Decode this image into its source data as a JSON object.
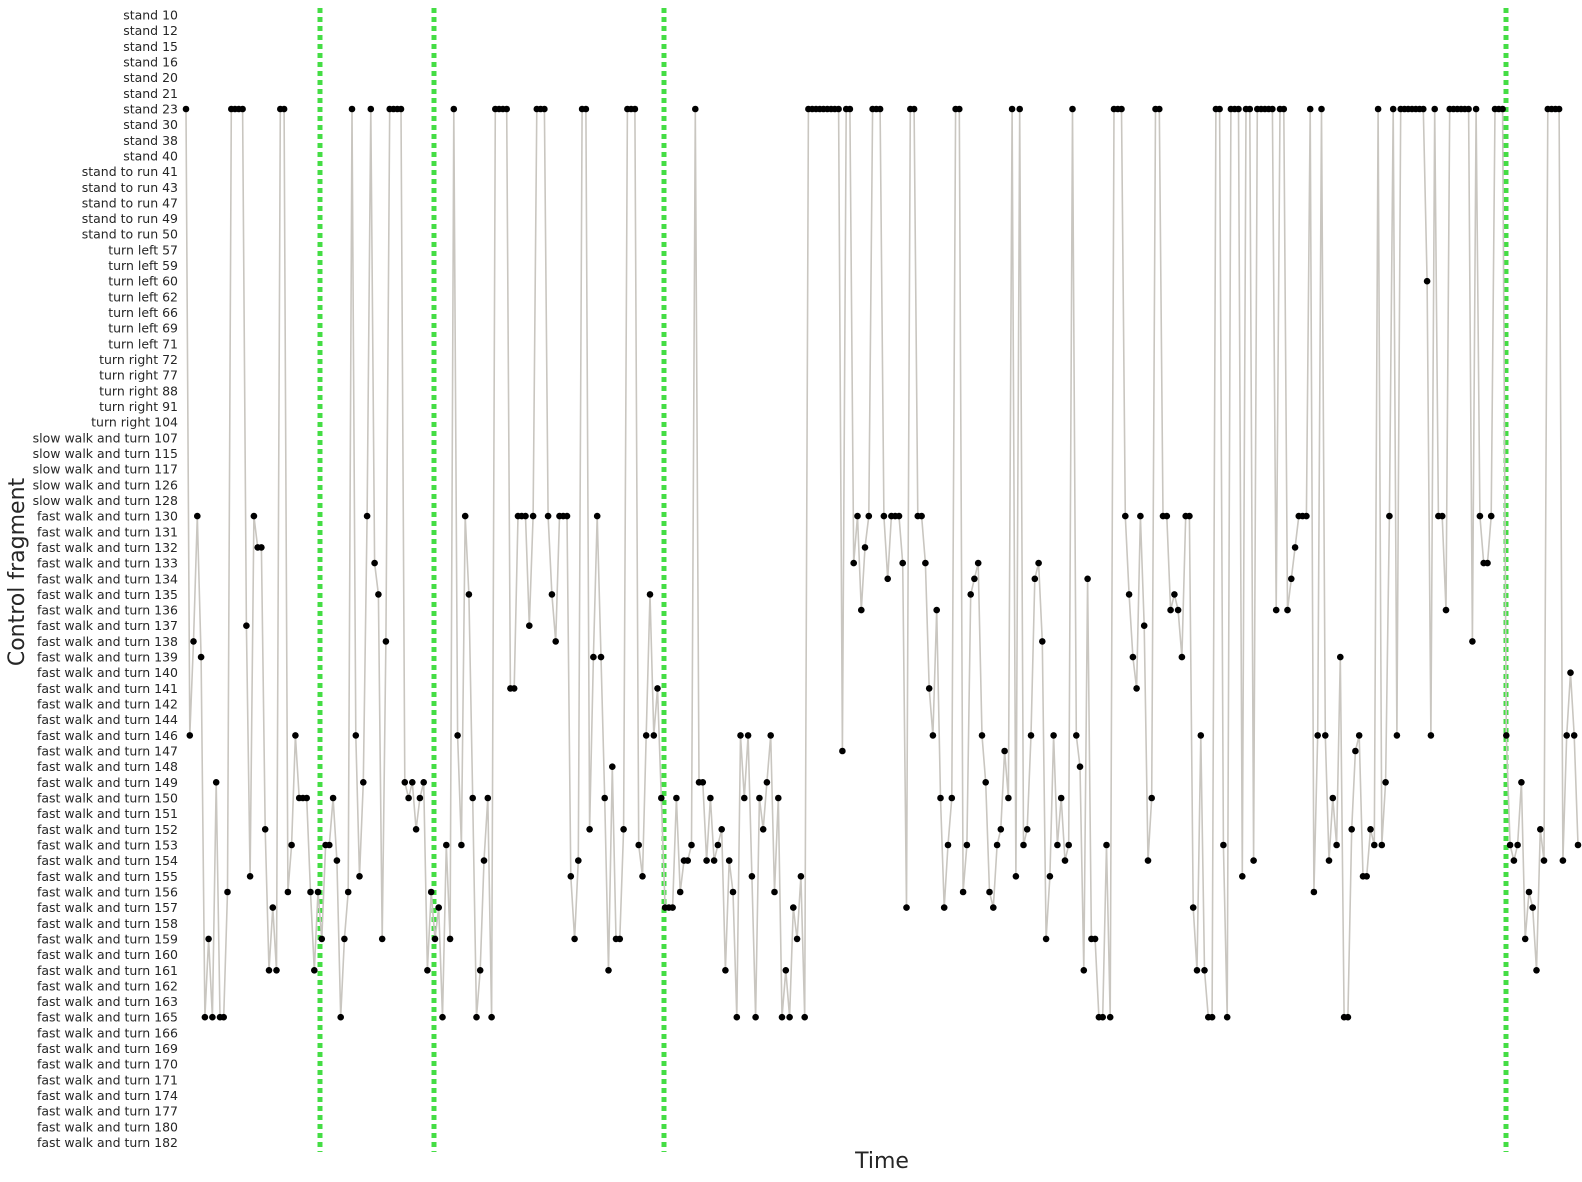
{
  "chart_data": {
    "type": "scatter",
    "xlabel": "Time",
    "ylabel": "Control fragment",
    "categories": [
      "stand 10",
      "stand 12",
      "stand 15",
      "stand 16",
      "stand 20",
      "stand 21",
      "stand 23",
      "stand 30",
      "stand 38",
      "stand 40",
      "stand to run 41",
      "stand to run 43",
      "stand to run 47",
      "stand to run 49",
      "stand to run 50",
      "turn left 57",
      "turn left 59",
      "turn left 60",
      "turn left 62",
      "turn left 66",
      "turn left 69",
      "turn left 71",
      "turn right 72",
      "turn right 77",
      "turn right 88",
      "turn right 91",
      "turn right 104",
      "slow walk and turn 107",
      "slow walk and turn 115",
      "slow walk and turn 117",
      "slow walk and turn 126",
      "slow walk and turn 128",
      "fast walk and turn 130",
      "fast walk and turn 131",
      "fast walk and turn 132",
      "fast walk and turn 133",
      "fast walk and turn 134",
      "fast walk and turn 135",
      "fast walk and turn 136",
      "fast walk and turn 137",
      "fast walk and turn 138",
      "fast walk and turn 139",
      "fast walk and turn 140",
      "fast walk and turn 141",
      "fast walk and turn 142",
      "fast walk and turn 144",
      "fast walk and turn 146",
      "fast walk and turn 147",
      "fast walk and turn 148",
      "fast walk and turn 149",
      "fast walk and turn 150",
      "fast walk and turn 151",
      "fast walk and turn 152",
      "fast walk and turn 153",
      "fast walk and turn 154",
      "fast walk and turn 155",
      "fast walk and turn 156",
      "fast walk and turn 157",
      "fast walk and turn 158",
      "fast walk and turn 159",
      "fast walk and turn 160",
      "fast walk and turn 161",
      "fast walk and turn 162",
      "fast walk and turn 163",
      "fast walk and turn 165",
      "fast walk and turn 166",
      "fast walk and turn 169",
      "fast walk and turn 170",
      "fast walk and turn 171",
      "fast walk and turn 174",
      "fast walk and turn 177",
      "fast walk and turn 180",
      "fast walk and turn 182"
    ],
    "series": [
      {
        "values": [
          "stand 23",
          "fast walk and turn 146",
          "fast walk and turn 138",
          "fast walk and turn 130",
          "fast walk and turn 139",
          "fast walk and turn 165",
          "fast walk and turn 159",
          "fast walk and turn 165",
          "fast walk and turn 149",
          "fast walk and turn 165",
          "fast walk and turn 165",
          "fast walk and turn 156",
          "stand 23",
          "stand 23",
          "stand 23",
          "stand 23",
          "fast walk and turn 137",
          "fast walk and turn 155",
          "fast walk and turn 130",
          "fast walk and turn 132",
          "fast walk and turn 132",
          "fast walk and turn 152",
          "fast walk and turn 161",
          "fast walk and turn 157",
          "fast walk and turn 161",
          "stand 23",
          "stand 23",
          "fast walk and turn 156",
          "fast walk and turn 153",
          "fast walk and turn 146",
          "fast walk and turn 150",
          "fast walk and turn 150",
          "fast walk and turn 150",
          "fast walk and turn 156",
          "fast walk and turn 161",
          "fast walk and turn 156",
          "fast walk and turn 159",
          "fast walk and turn 153",
          "fast walk and turn 153",
          "fast walk and turn 150",
          "fast walk and turn 154",
          "fast walk and turn 165",
          "fast walk and turn 159",
          "fast walk and turn 156",
          "stand 23",
          "fast walk and turn 146",
          "fast walk and turn 155",
          "fast walk and turn 149",
          "fast walk and turn 130",
          "stand 23",
          "fast walk and turn 133",
          "fast walk and turn 135",
          "fast walk and turn 159",
          "fast walk and turn 138",
          "stand 23",
          "stand 23",
          "stand 23",
          "stand 23",
          "fast walk and turn 149",
          "fast walk and turn 150",
          "fast walk and turn 149",
          "fast walk and turn 152",
          "fast walk and turn 150",
          "fast walk and turn 149",
          "fast walk and turn 161",
          "fast walk and turn 156",
          "fast walk and turn 159",
          "fast walk and turn 157",
          "fast walk and turn 165",
          "fast walk and turn 153",
          "fast walk and turn 159",
          "stand 23",
          "fast walk and turn 146",
          "fast walk and turn 153",
          "fast walk and turn 130",
          "fast walk and turn 135",
          "fast walk and turn 150",
          "fast walk and turn 165",
          "fast walk and turn 161",
          "fast walk and turn 154",
          "fast walk and turn 150",
          "fast walk and turn 165",
          "stand 23",
          "stand 23",
          "stand 23",
          "stand 23",
          "fast walk and turn 141",
          "fast walk and turn 141",
          "fast walk and turn 130",
          "fast walk and turn 130",
          "fast walk and turn 130",
          "fast walk and turn 137",
          "fast walk and turn 130",
          "stand 23",
          "stand 23",
          "stand 23",
          "fast walk and turn 130",
          "fast walk and turn 135",
          "fast walk and turn 138",
          "fast walk and turn 130",
          "fast walk and turn 130",
          "fast walk and turn 130",
          "fast walk and turn 155",
          "fast walk and turn 159",
          "fast walk and turn 154",
          "stand 23",
          "stand 23",
          "fast walk and turn 152",
          "fast walk and turn 139",
          "fast walk and turn 130",
          "fast walk and turn 139",
          "fast walk and turn 150",
          "fast walk and turn 161",
          "fast walk and turn 148",
          "fast walk and turn 159",
          "fast walk and turn 159",
          "fast walk and turn 152",
          "stand 23",
          "stand 23",
          "stand 23",
          "fast walk and turn 153",
          "fast walk and turn 155",
          "fast walk and turn 146",
          "fast walk and turn 135",
          "fast walk and turn 146",
          "fast walk and turn 141",
          "fast walk and turn 150",
          "fast walk and turn 157",
          "fast walk and turn 157",
          "fast walk and turn 157",
          "fast walk and turn 150",
          "fast walk and turn 156",
          "fast walk and turn 154",
          "fast walk and turn 154",
          "fast walk and turn 153",
          "stand 23",
          "fast walk and turn 149",
          "fast walk and turn 149",
          "fast walk and turn 154",
          "fast walk and turn 150",
          "fast walk and turn 154",
          "fast walk and turn 153",
          "fast walk and turn 152",
          "fast walk and turn 161",
          "fast walk and turn 154",
          "fast walk and turn 156",
          "fast walk and turn 165",
          "fast walk and turn 146",
          "fast walk and turn 150",
          "fast walk and turn 146",
          "fast walk and turn 155",
          "fast walk and turn 165",
          "fast walk and turn 150",
          "fast walk and turn 152",
          "fast walk and turn 149",
          "fast walk and turn 146",
          "fast walk and turn 156",
          "fast walk and turn 150",
          "fast walk and turn 165",
          "fast walk and turn 161",
          "fast walk and turn 165",
          "fast walk and turn 157",
          "fast walk and turn 159",
          "fast walk and turn 155",
          "fast walk and turn 165",
          "stand 23",
          "stand 23",
          "stand 23",
          "stand 23",
          "stand 23",
          "stand 23",
          "stand 23",
          "stand 23",
          "stand 23",
          "fast walk and turn 147",
          "stand 23",
          "stand 23",
          "fast walk and turn 133",
          "fast walk and turn 130",
          "fast walk and turn 136",
          "fast walk and turn 132",
          "fast walk and turn 130",
          "stand 23",
          "stand 23",
          "stand 23",
          "fast walk and turn 130",
          "fast walk and turn 134",
          "fast walk and turn 130",
          "fast walk and turn 130",
          "fast walk and turn 130",
          "fast walk and turn 133",
          "fast walk and turn 157",
          "stand 23",
          "stand 23",
          "fast walk and turn 130",
          "fast walk and turn 130",
          "fast walk and turn 133",
          "fast walk and turn 141",
          "fast walk and turn 146",
          "fast walk and turn 136",
          "fast walk and turn 150",
          "fast walk and turn 157",
          "fast walk and turn 153",
          "fast walk and turn 150",
          "stand 23",
          "stand 23",
          "fast walk and turn 156",
          "fast walk and turn 153",
          "fast walk and turn 135",
          "fast walk and turn 134",
          "fast walk and turn 133",
          "fast walk and turn 146",
          "fast walk and turn 149",
          "fast walk and turn 156",
          "fast walk and turn 157",
          "fast walk and turn 153",
          "fast walk and turn 152",
          "fast walk and turn 147",
          "fast walk and turn 150",
          "stand 23",
          "fast walk and turn 155",
          "stand 23",
          "fast walk and turn 153",
          "fast walk and turn 152",
          "fast walk and turn 146",
          "fast walk and turn 134",
          "fast walk and turn 133",
          "fast walk and turn 138",
          "fast walk and turn 159",
          "fast walk and turn 155",
          "fast walk and turn 146",
          "fast walk and turn 153",
          "fast walk and turn 150",
          "fast walk and turn 154",
          "fast walk and turn 153",
          "stand 23",
          "fast walk and turn 146",
          "fast walk and turn 148",
          "fast walk and turn 161",
          "fast walk and turn 134",
          "fast walk and turn 159",
          "fast walk and turn 159",
          "fast walk and turn 165",
          "fast walk and turn 165",
          "fast walk and turn 153",
          "fast walk and turn 165",
          "stand 23",
          "stand 23",
          "stand 23",
          "fast walk and turn 130",
          "fast walk and turn 135",
          "fast walk and turn 139",
          "fast walk and turn 141",
          "fast walk and turn 130",
          "fast walk and turn 137",
          "fast walk and turn 154",
          "fast walk and turn 150",
          "stand 23",
          "stand 23",
          "fast walk and turn 130",
          "fast walk and turn 130",
          "fast walk and turn 136",
          "fast walk and turn 135",
          "fast walk and turn 136",
          "fast walk and turn 139",
          "fast walk and turn 130",
          "fast walk and turn 130",
          "fast walk and turn 157",
          "fast walk and turn 161",
          "fast walk and turn 146",
          "fast walk and turn 161",
          "fast walk and turn 165",
          "fast walk and turn 165",
          "stand 23",
          "stand 23",
          "fast walk and turn 153",
          "fast walk and turn 165",
          "stand 23",
          "stand 23",
          "stand 23",
          "fast walk and turn 155",
          "stand 23",
          "stand 23",
          "fast walk and turn 154",
          "stand 23",
          "stand 23",
          "stand 23",
          "stand 23",
          "stand 23",
          "fast walk and turn 136",
          "stand 23",
          "stand 23",
          "fast walk and turn 136",
          "fast walk and turn 134",
          "fast walk and turn 132",
          "fast walk and turn 130",
          "fast walk and turn 130",
          "fast walk and turn 130",
          "stand 23",
          "fast walk and turn 156",
          "fast walk and turn 146",
          "stand 23",
          "fast walk and turn 146",
          "fast walk and turn 154",
          "fast walk and turn 150",
          "fast walk and turn 153",
          "fast walk and turn 139",
          "fast walk and turn 165",
          "fast walk and turn 165",
          "fast walk and turn 152",
          "fast walk and turn 147",
          "fast walk and turn 146",
          "fast walk and turn 155",
          "fast walk and turn 155",
          "fast walk and turn 152",
          "fast walk and turn 153",
          "stand 23",
          "fast walk and turn 153",
          "fast walk and turn 149",
          "fast walk and turn 130",
          "stand 23",
          "fast walk and turn 146",
          "stand 23",
          "stand 23",
          "stand 23",
          "stand 23",
          "stand 23",
          "stand 23",
          "stand 23",
          "turn left 60",
          "fast walk and turn 146",
          "stand 23",
          "fast walk and turn 130",
          "fast walk and turn 130",
          "fast walk and turn 136",
          "stand 23",
          "stand 23",
          "stand 23",
          "stand 23",
          "stand 23",
          "stand 23",
          "fast walk and turn 138",
          "stand 23",
          "fast walk and turn 130",
          "fast walk and turn 133",
          "fast walk and turn 133",
          "fast walk and turn 130",
          "stand 23",
          "stand 23",
          "stand 23",
          "fast walk and turn 146",
          "fast walk and turn 153",
          "fast walk and turn 154",
          "fast walk and turn 153",
          "fast walk and turn 149",
          "fast walk and turn 159",
          "fast walk and turn 156",
          "fast walk and turn 157",
          "fast walk and turn 161",
          "fast walk and turn 152",
          "fast walk and turn 154",
          "stand 23",
          "stand 23",
          "stand 23",
          "stand 23",
          "fast walk and turn 154",
          "fast walk and turn 146",
          "fast walk and turn 140",
          "fast walk and turn 146",
          "fast walk and turn 153"
        ]
      }
    ],
    "vlines": {
      "color": "#44dd44",
      "style": "dotted"
    },
    "grid": false,
    "legend": "none"
  }
}
